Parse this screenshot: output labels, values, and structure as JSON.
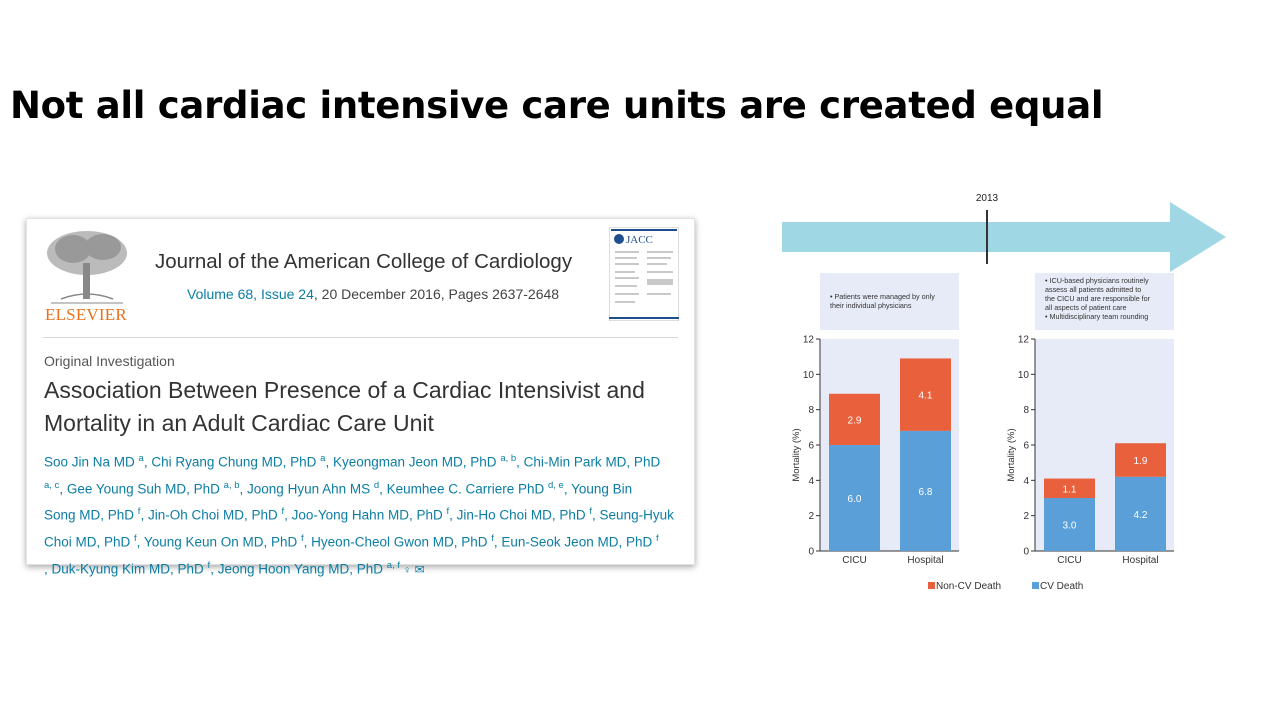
{
  "slide": {
    "title": "Not all cardiac intensive care units are created equal"
  },
  "article": {
    "publisher": "ELSEVIER",
    "journal": "Journal of the American College of Cardiology",
    "volume_issue": "Volume 68, Issue 24",
    "date_pages": ", 20 December 2016, Pages 2637-2648",
    "cover_label": "JACC",
    "type": "Original Investigation",
    "title": "Association Between Presence of a Cardiac Intensivist and Mortality in an Adult Cardiac Care Unit",
    "authors_lines": [
      [
        [
          "Soo Jin Na MD ",
          "a"
        ],
        [
          ", Chi Ryang Chung MD, PhD ",
          "a"
        ],
        [
          ", Kyeongman Jeon MD, PhD ",
          "a, b"
        ],
        [
          ", Chi-Min Park MD, PhD",
          ""
        ]
      ],
      [
        [
          "",
          "a, c"
        ],
        [
          ", Gee Young Suh MD, PhD ",
          "a, b"
        ],
        [
          ", Joong Hyun Ahn MS ",
          "d"
        ],
        [
          ", Keumhee C. Carriere PhD ",
          "d, e"
        ],
        [
          ", Young Bin",
          ""
        ]
      ],
      [
        [
          "Song MD, PhD ",
          "f"
        ],
        [
          ", Jin-Oh Choi MD, PhD ",
          "f"
        ],
        [
          ", Joo-Yong Hahn MD, PhD ",
          "f"
        ],
        [
          ", Jin-Ho Choi MD, PhD ",
          "f"
        ],
        [
          ", Seung-Hyuk",
          ""
        ]
      ],
      [
        [
          "Choi MD, PhD ",
          "f"
        ],
        [
          ", Young Keun On MD, PhD ",
          "f"
        ],
        [
          ", Hyeon-Cheol Gwon MD, PhD ",
          "f"
        ],
        [
          ", Eun-Seok Jeon MD, PhD ",
          "f"
        ]
      ],
      [
        [
          ", Duk-Kyung Kim MD, PhD ",
          "f"
        ],
        [
          ", Jeong Hoon Yang MD, PhD ",
          "a, f"
        ]
      ]
    ]
  },
  "timeline": {
    "year": "2013",
    "arrow_color": "#9fd8e4"
  },
  "notes": {
    "before": [
      "• Patients were managed by only",
      "  their individual physicians"
    ],
    "after": [
      "• ICU-based physicians routinely",
      "  assess all patients admitted to",
      "  the CICU and are responsible for",
      "  all aspects of patient care",
      "• Multidisciplinary team rounding"
    ]
  },
  "chart_data": [
    {
      "type": "bar",
      "stacked": true,
      "categories": [
        "CICU",
        "Hospital"
      ],
      "series": [
        {
          "name": "CV Death",
          "values": [
            6.0,
            6.8
          ],
          "color": "#5a9fd8"
        },
        {
          "name": "Non-CV Death",
          "values": [
            2.9,
            4.1
          ],
          "color": "#e8603c"
        }
      ],
      "ylabel": "Mortality (%)",
      "ylim": [
        0,
        12
      ],
      "yticks": [
        0,
        2,
        4,
        6,
        8,
        10,
        12
      ]
    },
    {
      "type": "bar",
      "stacked": true,
      "categories": [
        "CICU",
        "Hospital"
      ],
      "series": [
        {
          "name": "CV Death",
          "values": [
            3.0,
            4.2
          ],
          "color": "#5a9fd8"
        },
        {
          "name": "Non-CV Death",
          "values": [
            1.1,
            1.9
          ],
          "color": "#e8603c"
        }
      ],
      "ylabel": "Mortality (%)",
      "ylim": [
        0,
        12
      ],
      "yticks": [
        0,
        2,
        4,
        6,
        8,
        10,
        12
      ]
    }
  ],
  "legend": [
    {
      "label": "Non-CV Death",
      "color": "#e8603c"
    },
    {
      "label": "CV Death",
      "color": "#5a9fd8"
    }
  ]
}
